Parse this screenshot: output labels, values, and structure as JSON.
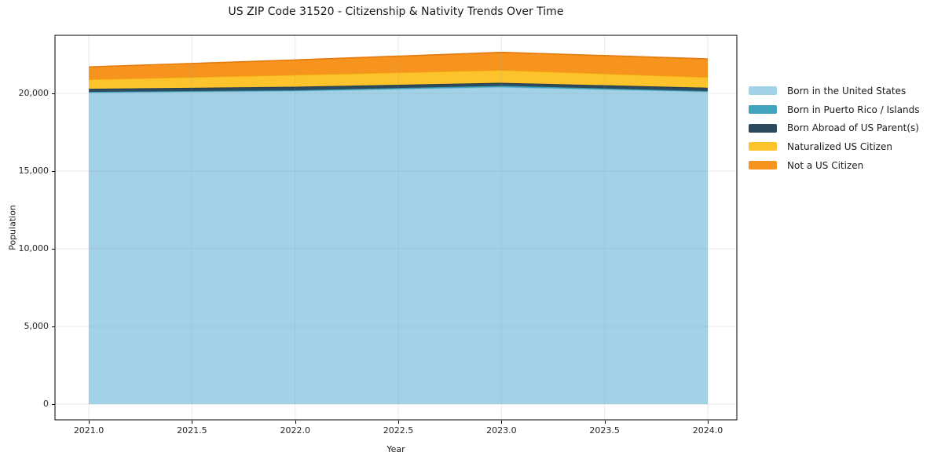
{
  "chart_data": {
    "type": "area",
    "stacked": true,
    "title": "US ZIP Code 31520 - Citizenship & Nativity Trends Over Time",
    "xlabel": "Year",
    "ylabel": "Population",
    "x": [
      2021,
      2022,
      2023,
      2024
    ],
    "series": [
      {
        "name": "Born in the United States",
        "values": [
          20050,
          20150,
          20400,
          20100
        ],
        "color": "#a2d2e8",
        "edge": "#8cc0da"
      },
      {
        "name": "Born in Puerto Rico / Islands",
        "values": [
          50,
          50,
          90,
          50
        ],
        "color": "#41a6bd",
        "edge": "#3795ab"
      },
      {
        "name": "Born Abroad of US Parent(s)",
        "values": [
          200,
          230,
          190,
          220
        ],
        "color": "#2b4a5e",
        "edge": "#233d4e"
      },
      {
        "name": "Naturalized US Citizen",
        "values": [
          600,
          760,
          820,
          670
        ],
        "color": "#fcc32d",
        "edge": "#f0a90e"
      },
      {
        "name": "Not a US Citizen",
        "values": [
          800,
          960,
          1140,
          1180
        ],
        "color": "#f7941e",
        "edge": "#e57a0d"
      }
    ],
    "totals": [
      21700,
      22150,
      22640,
      22220
    ],
    "xlim": [
      2020.836,
      2024.141
    ],
    "ylim": [
      -1010,
      23737
    ],
    "x_ticks": [
      {
        "value": 2021.0,
        "label": "2021.0"
      },
      {
        "value": 2021.5,
        "label": "2021.5"
      },
      {
        "value": 2022.0,
        "label": "2022.0"
      },
      {
        "value": 2022.5,
        "label": "2022.5"
      },
      {
        "value": 2023.0,
        "label": "2023.0"
      },
      {
        "value": 2023.5,
        "label": "2023.5"
      },
      {
        "value": 2024.0,
        "label": "2024.0"
      }
    ],
    "y_ticks": [
      {
        "value": 0,
        "label": "0"
      },
      {
        "value": 5000,
        "label": "5,000"
      },
      {
        "value": 10000,
        "label": "10,000"
      },
      {
        "value": 15000,
        "label": "15,000"
      },
      {
        "value": 20000,
        "label": "20,000"
      }
    ],
    "grid": true,
    "legend_position": "right"
  },
  "colors": {
    "background": "#ffffff",
    "spine": "#000000",
    "grid": "#999999",
    "tick_text": "#262626",
    "title_text": "#1a1a1a"
  }
}
